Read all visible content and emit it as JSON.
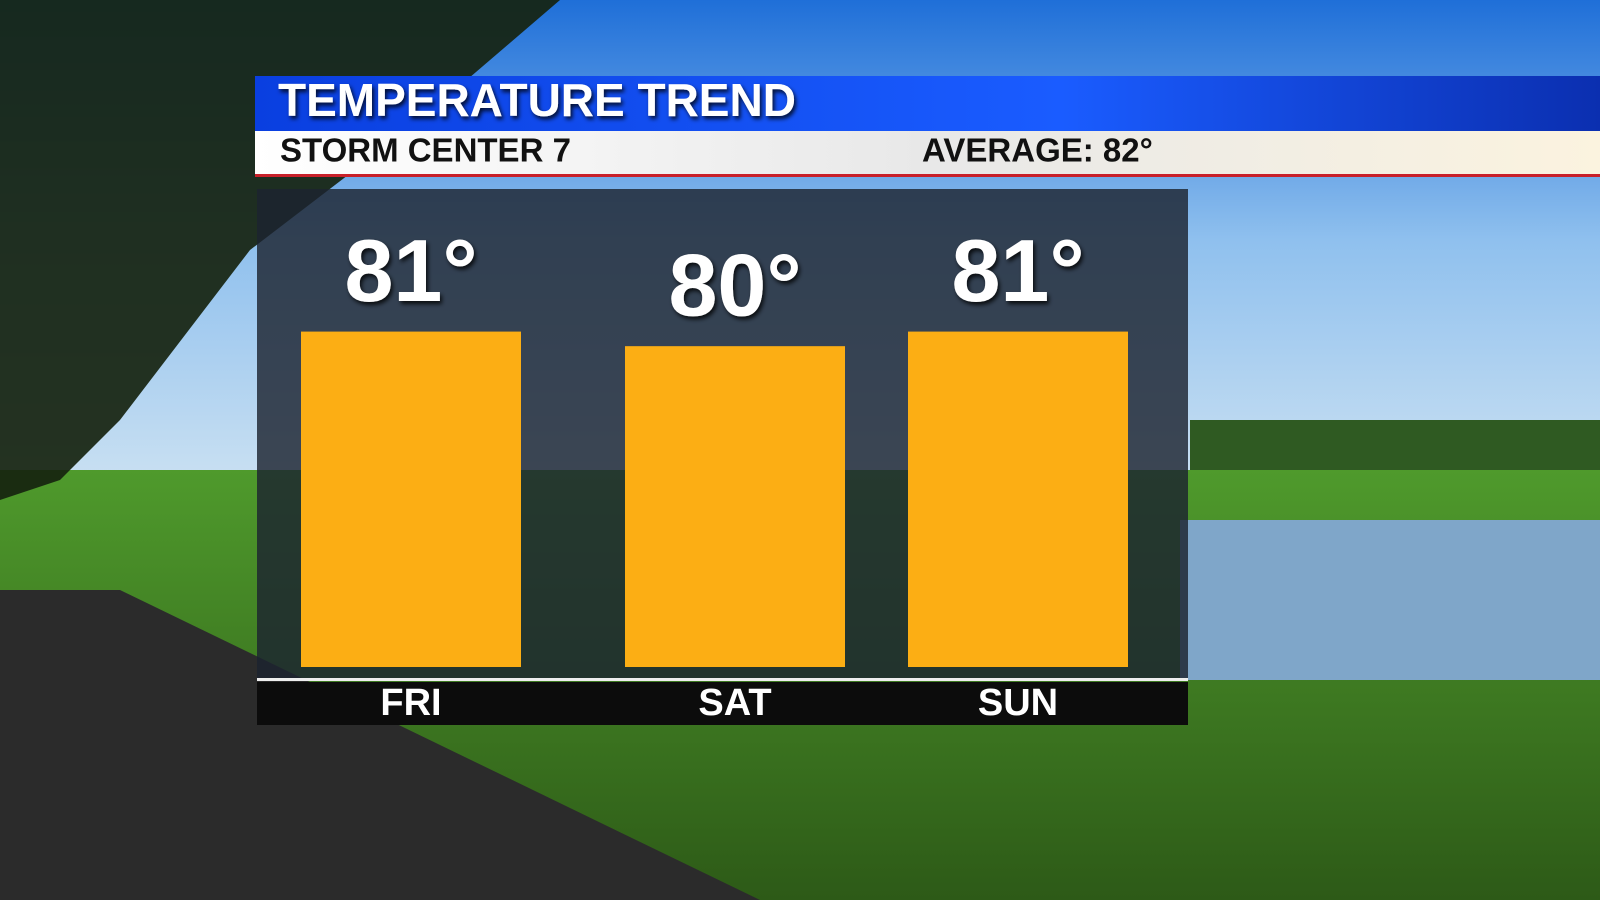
{
  "chart_data": {
    "type": "bar",
    "title": "TEMPERATURE TREND",
    "subtitle": "STORM CENTER 7",
    "annotation": "AVERAGE: 82°",
    "categories": [
      "FRI",
      "SAT",
      "SUN"
    ],
    "values": [
      81,
      80,
      81
    ],
    "value_labels": [
      "81°",
      "80°",
      "81°"
    ],
    "color": "#fcae14",
    "ylim": [
      58,
      82
    ]
  }
}
